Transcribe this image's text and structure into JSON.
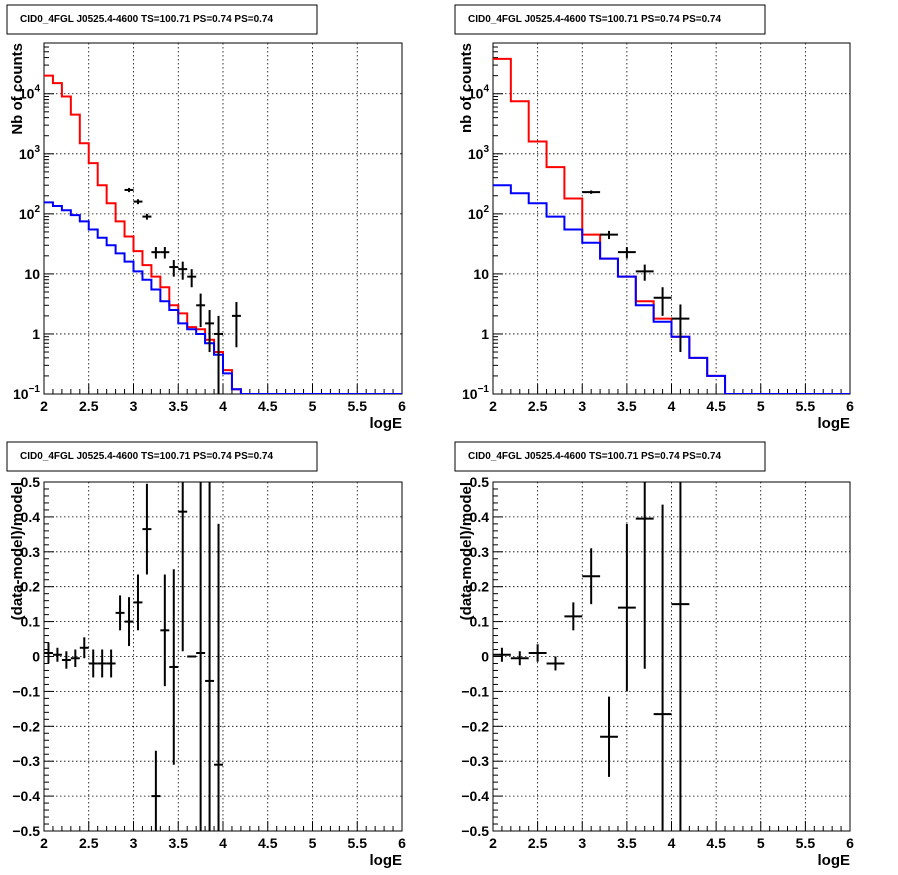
{
  "chart_data": [
    {
      "type": "histogram",
      "title": "CID0_4FGL J0525.4-4600 TS=100.71 PS=0.74 PS=0.74",
      "xlabel": "logE",
      "ylabel": "Nb of counts",
      "xlim": [
        2,
        6
      ],
      "ylim": [
        0.1,
        70000
      ],
      "yscale": "log",
      "grid": true,
      "xticks": [
        "2",
        "2.5",
        "3",
        "3.5",
        "4",
        "4.5",
        "5",
        "5.5",
        "6"
      ],
      "yticks": [
        {
          "v": 0.1,
          "base": "10",
          "exp": "−1"
        },
        {
          "v": 1,
          "label": "1"
        },
        {
          "v": 10,
          "label": "10"
        },
        {
          "v": 100,
          "base": "10",
          "exp": "2"
        },
        {
          "v": 1000,
          "base": "10",
          "exp": "3"
        },
        {
          "v": 10000,
          "base": "10",
          "exp": "4"
        }
      ],
      "bin_width": 0.1,
      "series": [
        {
          "color": "#ff0000",
          "kind": "step",
          "x_start": 2.0,
          "values": [
            20000,
            15000,
            9000,
            4500,
            1500,
            700,
            300,
            150,
            75,
            42,
            24,
            14,
            9,
            6,
            3,
            2.2,
            1.3,
            1.2,
            0.8,
            0.5,
            0.25,
            0.12,
            0.1,
            0.1,
            0.1,
            0.1,
            0.1,
            0.1,
            0.1,
            0.1,
            0.1,
            0.1,
            0.1,
            0.1,
            0.1,
            0.1,
            0.1,
            0.1,
            0.1,
            0.1
          ]
        },
        {
          "color": "#0000ff",
          "kind": "step",
          "x_start": 2.0,
          "values": [
            155,
            135,
            115,
            95,
            75,
            55,
            40,
            30,
            22,
            16,
            11,
            8,
            5.5,
            3.5,
            2.5,
            1.5,
            1.2,
            1.0,
            0.7,
            0.45,
            0.22,
            0.12,
            0.1,
            0.1,
            0.1,
            0.1,
            0.1,
            0.1,
            0.1,
            0.1,
            0.1,
            0.1,
            0.1,
            0.1,
            0.1,
            0.1,
            0.1,
            0.1,
            0.1,
            0.1
          ]
        },
        {
          "color": "#000000",
          "kind": "points",
          "xerr": 0.05,
          "points": [
            [
              2.95,
              250,
              20
            ],
            [
              3.05,
              160,
              15
            ],
            [
              3.15,
              90,
              10
            ],
            [
              3.25,
              23,
              5
            ],
            [
              3.35,
              23,
              5
            ],
            [
              3.45,
              13,
              4
            ],
            [
              3.55,
              12,
              4
            ],
            [
              3.65,
              9,
              3
            ],
            [
              3.75,
              3,
              1.7
            ],
            [
              3.85,
              1.5,
              1.0
            ],
            [
              3.95,
              1,
              1
            ],
            [
              4.15,
              2,
              1.4
            ]
          ]
        }
      ]
    },
    {
      "type": "histogram",
      "title": "CID0_4FGL J0525.4-4600 TS=100.71 PS=0.74 PS=0.74",
      "xlabel": "logE",
      "ylabel": "nb of counts",
      "xlim": [
        2,
        6
      ],
      "ylim": [
        0.1,
        70000
      ],
      "yscale": "log",
      "grid": true,
      "xticks": [
        "2",
        "2.5",
        "3",
        "3.5",
        "4",
        "4.5",
        "5",
        "5.5",
        "6"
      ],
      "yticks": [
        {
          "v": 0.1,
          "base": "10",
          "exp": "−1"
        },
        {
          "v": 1,
          "label": "1"
        },
        {
          "v": 10,
          "label": "10"
        },
        {
          "v": 100,
          "base": "10",
          "exp": "2"
        },
        {
          "v": 1000,
          "base": "10",
          "exp": "3"
        },
        {
          "v": 10000,
          "base": "10",
          "exp": "4"
        }
      ],
      "bin_width": 0.2,
      "series": [
        {
          "color": "#ff0000",
          "kind": "step",
          "x_start": 2.0,
          "values": [
            38000,
            7500,
            1600,
            600,
            180,
            45,
            18,
            9,
            3.5,
            1.8,
            0.9,
            0.4,
            0.2,
            0.1,
            0.1,
            0.1,
            0.1,
            0.1,
            0.1,
            0.1
          ]
        },
        {
          "color": "#0000ff",
          "kind": "step",
          "x_start": 2.0,
          "values": [
            300,
            220,
            150,
            90,
            55,
            33,
            18,
            9,
            3,
            1.6,
            0.9,
            0.4,
            0.2,
            0.1,
            0.1,
            0.1,
            0.1,
            0.1,
            0.1,
            0.1
          ]
        },
        {
          "color": "#000000",
          "kind": "points",
          "xerr": 0.1,
          "points": [
            [
              3.1,
              230,
              15
            ],
            [
              3.3,
              45,
              7
            ],
            [
              3.5,
              23,
              5
            ],
            [
              3.7,
              11,
              3.3
            ],
            [
              3.9,
              4,
              2
            ],
            [
              4.1,
              1.8,
              1.3
            ]
          ]
        }
      ]
    },
    {
      "type": "scatter",
      "title": "CID0_4FGL J0525.4-4600 TS=100.71 PS=0.74 PS=0.74",
      "xlabel": "logE",
      "ylabel": "(data-model)/model",
      "xlim": [
        2,
        6
      ],
      "ylim": [
        -0.5,
        0.5
      ],
      "yscale": "linear",
      "grid": true,
      "xticks": [
        "2",
        "2.5",
        "3",
        "3.5",
        "4",
        "4.5",
        "5",
        "5.5",
        "6"
      ],
      "yticks": [
        {
          "v": -0.5,
          "label": "−0.5"
        },
        {
          "v": -0.4,
          "label": "−0.4"
        },
        {
          "v": -0.3,
          "label": "−0.3"
        },
        {
          "v": -0.2,
          "label": "−0.2"
        },
        {
          "v": -0.1,
          "label": "−0.1"
        },
        {
          "v": 0,
          "label": "0"
        },
        {
          "v": 0.1,
          "label": "0.1"
        },
        {
          "v": 0.2,
          "label": "0.2"
        },
        {
          "v": 0.3,
          "label": "0.3"
        },
        {
          "v": 0.4,
          "label": "0.4"
        },
        {
          "v": 0.5,
          "label": "0.5"
        }
      ],
      "series": [
        {
          "color": "#000000",
          "kind": "points",
          "xerr": 0.05,
          "points": [
            [
              2.05,
              0.01,
              0.03
            ],
            [
              2.15,
              0.005,
              0.02
            ],
            [
              2.25,
              -0.01,
              0.025
            ],
            [
              2.35,
              -0.005,
              0.025
            ],
            [
              2.45,
              0.025,
              0.03
            ],
            [
              2.55,
              -0.02,
              0.04
            ],
            [
              2.65,
              -0.02,
              0.04
            ],
            [
              2.75,
              -0.02,
              0.04
            ],
            [
              2.85,
              0.125,
              0.05
            ],
            [
              2.95,
              0.1,
              0.07
            ],
            [
              3.05,
              0.155,
              0.08
            ],
            [
              3.15,
              0.365,
              0.13
            ],
            [
              3.25,
              -0.4,
              0.13
            ],
            [
              3.35,
              0.075,
              0.16
            ],
            [
              3.45,
              -0.03,
              0.28
            ],
            [
              3.55,
              0.415,
              0.4
            ],
            [
              3.65,
              0.0,
              0.0
            ],
            [
              3.75,
              0.01,
              0.6
            ],
            [
              3.85,
              -0.07,
              0.9
            ],
            [
              3.95,
              -0.31,
              0.69
            ]
          ]
        }
      ]
    },
    {
      "type": "scatter",
      "title": "CID0_4FGL J0525.4-4600 TS=100.71 PS=0.74 PS=0.74",
      "xlabel": "logE",
      "ylabel": "(data-model)/model",
      "xlim": [
        2,
        6
      ],
      "ylim": [
        -0.5,
        0.5
      ],
      "yscale": "linear",
      "grid": true,
      "xticks": [
        "2",
        "2.5",
        "3",
        "3.5",
        "4",
        "4.5",
        "5",
        "5.5",
        "6"
      ],
      "yticks": [
        {
          "v": -0.5,
          "label": "−0.5"
        },
        {
          "v": -0.4,
          "label": "−0.4"
        },
        {
          "v": -0.3,
          "label": "−0.3"
        },
        {
          "v": -0.2,
          "label": "−0.2"
        },
        {
          "v": -0.1,
          "label": "−0.1"
        },
        {
          "v": 0,
          "label": "0"
        },
        {
          "v": 0.1,
          "label": "0.1"
        },
        {
          "v": 0.2,
          "label": "0.2"
        },
        {
          "v": 0.3,
          "label": "0.3"
        },
        {
          "v": 0.4,
          "label": "0.4"
        },
        {
          "v": 0.5,
          "label": "0.5"
        }
      ],
      "series": [
        {
          "color": "#000000",
          "kind": "points",
          "xerr": 0.1,
          "points": [
            [
              2.1,
              0.005,
              0.02
            ],
            [
              2.3,
              -0.005,
              0.02
            ],
            [
              2.5,
              0.01,
              0.025
            ],
            [
              2.7,
              -0.02,
              0.02
            ],
            [
              2.9,
              0.115,
              0.04
            ],
            [
              3.1,
              0.23,
              0.08
            ],
            [
              3.3,
              -0.23,
              0.115
            ],
            [
              3.5,
              0.14,
              0.24
            ],
            [
              3.7,
              0.395,
              0.43
            ],
            [
              3.9,
              -0.165,
              0.6
            ],
            [
              4.1,
              0.15,
              0.7
            ]
          ]
        }
      ]
    }
  ]
}
